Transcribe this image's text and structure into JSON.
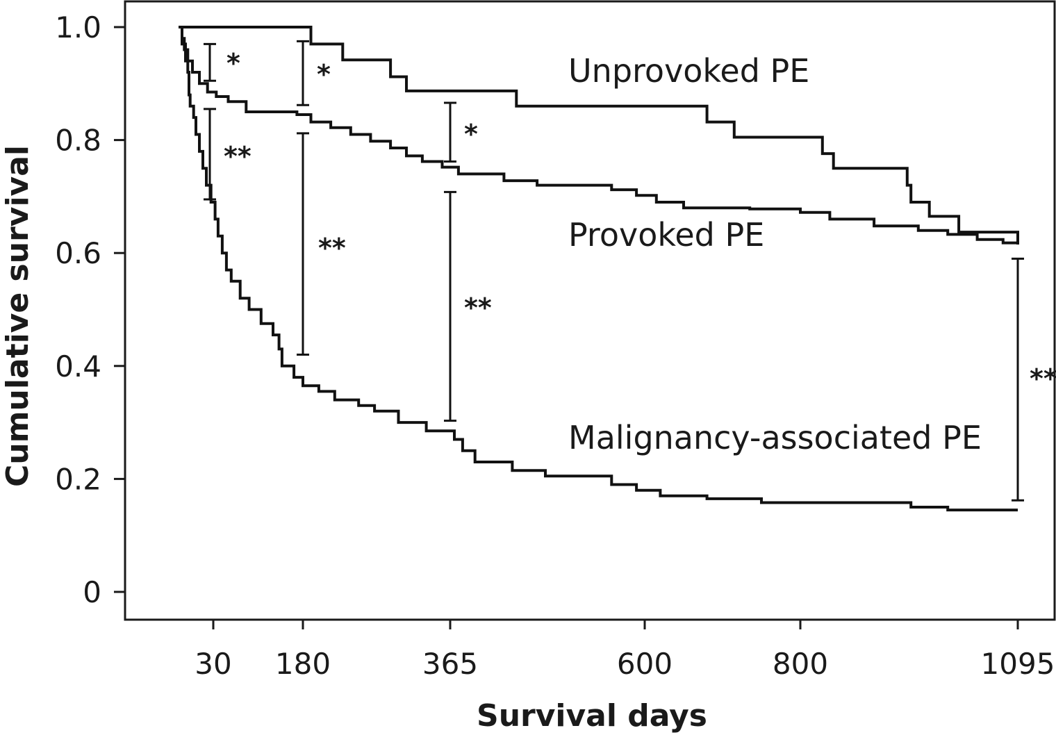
{
  "chart_data": {
    "type": "line",
    "step": true,
    "xlabel": "Survival days",
    "ylabel": "Cumulative survival",
    "x_ticks": [
      30,
      180,
      365,
      600,
      800,
      1095
    ],
    "y_ticks": [
      0,
      0.2,
      0.4,
      0.6,
      0.8,
      1.0
    ],
    "y_tick_labels": [
      "0",
      "0.2",
      "0.4",
      "0.6",
      "0.8",
      "1.0"
    ],
    "grid": false,
    "series": [
      {
        "name": "Unprovoked PE",
        "points": [
          [
            0,
            1.0
          ],
          [
            190,
            1.0
          ],
          [
            190,
            0.97
          ],
          [
            230,
            0.97
          ],
          [
            230,
            0.942
          ],
          [
            290,
            0.942
          ],
          [
            290,
            0.912
          ],
          [
            310,
            0.912
          ],
          [
            310,
            0.887
          ],
          [
            445,
            0.887
          ],
          [
            445,
            0.86
          ],
          [
            680,
            0.86
          ],
          [
            680,
            0.832
          ],
          [
            715,
            0.832
          ],
          [
            715,
            0.805
          ],
          [
            830,
            0.805
          ],
          [
            830,
            0.776
          ],
          [
            845,
            0.776
          ],
          [
            845,
            0.75
          ],
          [
            945,
            0.75
          ],
          [
            945,
            0.72
          ],
          [
            950,
            0.72
          ],
          [
            950,
            0.69
          ],
          [
            975,
            0.69
          ],
          [
            975,
            0.665
          ],
          [
            1015,
            0.665
          ],
          [
            1015,
            0.637
          ],
          [
            1095,
            0.637
          ],
          [
            1095,
            0.615
          ]
        ]
      },
      {
        "name": "Provoked PE",
        "points": [
          [
            0,
            1.0
          ],
          [
            3,
            0.98
          ],
          [
            5,
            0.96
          ],
          [
            8,
            0.94
          ],
          [
            12,
            0.92
          ],
          [
            18,
            0.9
          ],
          [
            25,
            0.885
          ],
          [
            35,
            0.877
          ],
          [
            55,
            0.868
          ],
          [
            85,
            0.85
          ],
          [
            170,
            0.845
          ],
          [
            190,
            0.832
          ],
          [
            215,
            0.822
          ],
          [
            240,
            0.81
          ],
          [
            265,
            0.798
          ],
          [
            290,
            0.786
          ],
          [
            310,
            0.772
          ],
          [
            330,
            0.762
          ],
          [
            355,
            0.752
          ],
          [
            375,
            0.74
          ],
          [
            430,
            0.728
          ],
          [
            470,
            0.72
          ],
          [
            560,
            0.712
          ],
          [
            590,
            0.702
          ],
          [
            615,
            0.69
          ],
          [
            650,
            0.68
          ],
          [
            735,
            0.678
          ],
          [
            800,
            0.672
          ],
          [
            840,
            0.66
          ],
          [
            900,
            0.648
          ],
          [
            960,
            0.64
          ],
          [
            1000,
            0.633
          ],
          [
            1040,
            0.624
          ],
          [
            1075,
            0.618
          ],
          [
            1095,
            0.618
          ]
        ]
      },
      {
        "name": "Malignancy-associated PE",
        "points": [
          [
            0,
            1.0
          ],
          [
            3,
            0.97
          ],
          [
            6,
            0.94
          ],
          [
            8,
            0.92
          ],
          [
            9,
            0.88
          ],
          [
            10,
            0.86
          ],
          [
            13,
            0.84
          ],
          [
            15,
            0.81
          ],
          [
            18,
            0.78
          ],
          [
            21,
            0.75
          ],
          [
            24,
            0.72
          ],
          [
            28,
            0.69
          ],
          [
            33,
            0.66
          ],
          [
            38,
            0.63
          ],
          [
            45,
            0.6
          ],
          [
            52,
            0.57
          ],
          [
            60,
            0.55
          ],
          [
            75,
            0.52
          ],
          [
            90,
            0.5
          ],
          [
            110,
            0.475
          ],
          [
            130,
            0.455
          ],
          [
            140,
            0.43
          ],
          [
            145,
            0.4
          ],
          [
            165,
            0.38
          ],
          [
            180,
            0.365
          ],
          [
            200,
            0.355
          ],
          [
            220,
            0.34
          ],
          [
            250,
            0.33
          ],
          [
            270,
            0.32
          ],
          [
            300,
            0.3
          ],
          [
            335,
            0.285
          ],
          [
            370,
            0.27
          ],
          [
            380,
            0.25
          ],
          [
            395,
            0.23
          ],
          [
            440,
            0.215
          ],
          [
            480,
            0.205
          ],
          [
            560,
            0.19
          ],
          [
            590,
            0.18
          ],
          [
            620,
            0.17
          ],
          [
            680,
            0.165
          ],
          [
            750,
            0.158
          ],
          [
            950,
            0.15
          ],
          [
            1000,
            0.145
          ],
          [
            1095,
            0.145
          ]
        ]
      }
    ],
    "significance_bars": [
      {
        "x": 30,
        "from": 0.905,
        "to": 0.97,
        "label": "*"
      },
      {
        "x": 30,
        "from": 0.695,
        "to": 0.855,
        "label": "**"
      },
      {
        "x": 180,
        "from": 0.862,
        "to": 0.975,
        "label": "*"
      },
      {
        "x": 180,
        "from": 0.42,
        "to": 0.812,
        "label": "**"
      },
      {
        "x": 365,
        "from": 0.762,
        "to": 0.866,
        "label": "*"
      },
      {
        "x": 365,
        "from": 0.303,
        "to": 0.708,
        "label": "**"
      },
      {
        "x": 1095,
        "from": 0.162,
        "to": 0.59,
        "label": "**"
      }
    ]
  }
}
